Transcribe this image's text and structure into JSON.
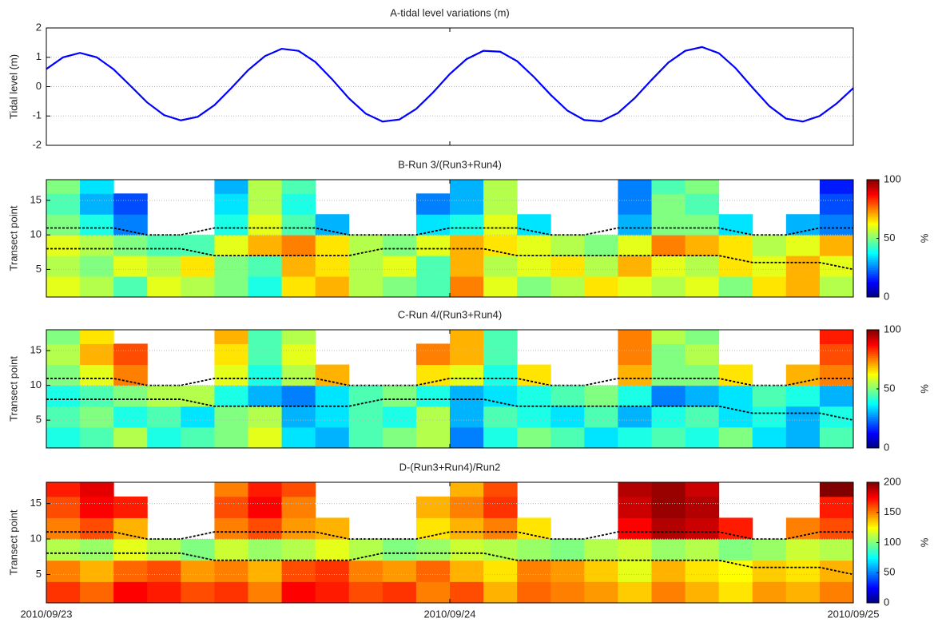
{
  "chart_data": [
    {
      "type": "line",
      "title": "A-tidal level variations (m)",
      "ylabel": "Tidal level (m)",
      "x": [
        0,
        1,
        2,
        3,
        4,
        5,
        6,
        7,
        8,
        9,
        10,
        11,
        12,
        13,
        14,
        15,
        16,
        17,
        18,
        19,
        20,
        21,
        22,
        23,
        24,
        25,
        26,
        27,
        28,
        29,
        30,
        31,
        32,
        33,
        34,
        35,
        36,
        37,
        38,
        39,
        40,
        41,
        42,
        43,
        44,
        45,
        46,
        47,
        48
      ],
      "series": [
        {
          "color": "#0000ff",
          "values": [
            0.6,
            1.0,
            1.15,
            1.0,
            0.59,
            0.03,
            -0.54,
            -0.97,
            -1.15,
            -1.03,
            -0.63,
            -0.05,
            0.56,
            1.04,
            1.29,
            1.22,
            0.84,
            0.25,
            -0.4,
            -0.92,
            -1.19,
            -1.12,
            -0.76,
            -0.2,
            0.43,
            0.94,
            1.22,
            1.19,
            0.87,
            0.33,
            -0.28,
            -0.82,
            -1.14,
            -1.18,
            -0.9,
            -0.39,
            0.23,
            0.82,
            1.22,
            1.35,
            1.14,
            0.63,
            -0.03,
            -0.66,
            -1.09,
            -1.19,
            -1.0,
            -0.58,
            -0.05
          ]
        }
      ],
      "xlim": [
        0,
        48
      ],
      "ylim": [
        -2,
        2
      ],
      "yticks": [
        -2,
        -1,
        0,
        1,
        2
      ],
      "grid": true
    },
    {
      "type": "heatmap",
      "title": "B-Run 3/(Run3+Run4)",
      "ylabel": "Transect point",
      "colorbar_label": "%",
      "x": [
        1,
        3,
        5,
        7,
        9,
        11,
        13,
        15,
        17,
        19,
        21,
        23,
        25,
        27,
        29,
        31,
        33,
        35,
        37,
        39,
        41,
        43,
        45,
        47
      ],
      "y": [
        2.5,
        5.5,
        8.5,
        11.5,
        14.5,
        17.5
      ],
      "z": [
        [
          60,
          55,
          45,
          60,
          55,
          50,
          40,
          65,
          70,
          55,
          50,
          45,
          75,
          60,
          50,
          55,
          65,
          60,
          55,
          60,
          50,
          65,
          70,
          55
        ],
        [
          55,
          50,
          60,
          55,
          65,
          50,
          45,
          70,
          65,
          55,
          60,
          45,
          70,
          55,
          60,
          65,
          55,
          70,
          60,
          55,
          65,
          60,
          70,
          60
        ],
        [
          60,
          55,
          50,
          45,
          45,
          60,
          70,
          75,
          65,
          55,
          50,
          60,
          70,
          65,
          60,
          55,
          50,
          60,
          75,
          70,
          65,
          55,
          60,
          70
        ],
        [
          50,
          40,
          25,
          null,
          null,
          40,
          60,
          45,
          30,
          null,
          null,
          35,
          40,
          60,
          35,
          null,
          null,
          30,
          50,
          50,
          35,
          null,
          30,
          25
        ],
        [
          45,
          30,
          20,
          null,
          null,
          35,
          55,
          40,
          null,
          null,
          null,
          25,
          30,
          55,
          null,
          null,
          null,
          25,
          50,
          45,
          null,
          null,
          null,
          20
        ],
        [
          50,
          35,
          null,
          null,
          null,
          30,
          55,
          45,
          null,
          null,
          null,
          null,
          30,
          55,
          null,
          null,
          null,
          25,
          45,
          50,
          null,
          null,
          null,
          15
        ]
      ],
      "xlim": [
        0,
        48
      ],
      "ylim": [
        1,
        18
      ],
      "yticks": [
        5,
        10,
        15
      ],
      "clim": [
        0,
        100
      ],
      "cticks": [
        0,
        50,
        100
      ],
      "grid": true,
      "contour_x": [
        0,
        2,
        4,
        6,
        8,
        10,
        12,
        14,
        16,
        18,
        20,
        22,
        24,
        26,
        28,
        30,
        32,
        34,
        36,
        38,
        40,
        42,
        44,
        46,
        48
      ],
      "contour_lines": [
        [
          11,
          11,
          11,
          10,
          10,
          11,
          11,
          11,
          11,
          10,
          10,
          10,
          11,
          11,
          11,
          10,
          10,
          11,
          11,
          11,
          11,
          10,
          10,
          11,
          11
        ],
        [
          8,
          8,
          8,
          8,
          8,
          7,
          7,
          7,
          7,
          7,
          8,
          8,
          8,
          8,
          7,
          7,
          7,
          7,
          7,
          7,
          7,
          6,
          6,
          6,
          5
        ]
      ]
    },
    {
      "type": "heatmap",
      "title": "C-Run 4/(Run3+Run4)",
      "ylabel": "Transect point",
      "colorbar_label": "%",
      "x": [
        1,
        3,
        5,
        7,
        9,
        11,
        13,
        15,
        17,
        19,
        21,
        23,
        25,
        27,
        29,
        31,
        33,
        35,
        37,
        39,
        41,
        43,
        45,
        47
      ],
      "y": [
        2.5,
        5.5,
        8.5,
        11.5,
        14.5,
        17.5
      ],
      "z": [
        [
          40,
          45,
          55,
          40,
          45,
          50,
          60,
          35,
          30,
          45,
          50,
          55,
          25,
          40,
          50,
          45,
          35,
          40,
          45,
          40,
          50,
          35,
          30,
          45
        ],
        [
          45,
          50,
          40,
          45,
          35,
          50,
          55,
          30,
          35,
          45,
          40,
          55,
          30,
          45,
          40,
          35,
          45,
          30,
          40,
          45,
          35,
          40,
          30,
          40
        ],
        [
          40,
          45,
          50,
          55,
          55,
          40,
          30,
          25,
          35,
          45,
          50,
          40,
          30,
          35,
          40,
          45,
          50,
          40,
          25,
          30,
          35,
          45,
          40,
          30
        ],
        [
          50,
          60,
          75,
          null,
          null,
          60,
          40,
          55,
          70,
          null,
          null,
          65,
          60,
          40,
          65,
          null,
          null,
          70,
          50,
          50,
          65,
          null,
          70,
          75
        ],
        [
          55,
          70,
          80,
          null,
          null,
          65,
          45,
          60,
          null,
          null,
          null,
          75,
          70,
          45,
          null,
          null,
          null,
          75,
          50,
          55,
          null,
          null,
          null,
          80
        ],
        [
          50,
          65,
          null,
          null,
          null,
          70,
          45,
          55,
          null,
          null,
          null,
          null,
          70,
          45,
          null,
          null,
          null,
          75,
          55,
          50,
          null,
          null,
          null,
          85
        ]
      ],
      "xlim": [
        0,
        48
      ],
      "ylim": [
        1,
        18
      ],
      "yticks": [
        5,
        10,
        15
      ],
      "clim": [
        0,
        100
      ],
      "cticks": [
        0,
        50,
        100
      ],
      "grid": true,
      "contour_x": [
        0,
        2,
        4,
        6,
        8,
        10,
        12,
        14,
        16,
        18,
        20,
        22,
        24,
        26,
        28,
        30,
        32,
        34,
        36,
        38,
        40,
        42,
        44,
        46,
        48
      ],
      "contour_lines": [
        [
          11,
          11,
          11,
          10,
          10,
          11,
          11,
          11,
          11,
          10,
          10,
          10,
          11,
          11,
          11,
          10,
          10,
          11,
          11,
          11,
          11,
          10,
          10,
          11,
          11
        ],
        [
          8,
          8,
          8,
          8,
          8,
          7,
          7,
          7,
          7,
          7,
          8,
          8,
          8,
          8,
          7,
          7,
          7,
          7,
          7,
          7,
          7,
          6,
          6,
          6,
          5
        ]
      ]
    },
    {
      "type": "heatmap",
      "title": "D-(Run3+Run4)/Run2",
      "ylabel": "Transect point",
      "colorbar_label": "%",
      "x": [
        1,
        3,
        5,
        7,
        9,
        11,
        13,
        15,
        17,
        19,
        21,
        23,
        25,
        27,
        29,
        31,
        33,
        35,
        37,
        39,
        41,
        43,
        45,
        47
      ],
      "y": [
        2.5,
        5.5,
        8.5,
        11.5,
        14.5,
        17.5
      ],
      "z": [
        [
          165,
          155,
          175,
          170,
          160,
          165,
          150,
          175,
          170,
          160,
          165,
          150,
          160,
          140,
          155,
          150,
          145,
          135,
          150,
          140,
          130,
          145,
          140,
          150
        ],
        [
          150,
          140,
          155,
          160,
          145,
          150,
          140,
          160,
          165,
          150,
          145,
          155,
          140,
          130,
          150,
          145,
          135,
          120,
          140,
          130,
          125,
          135,
          130,
          140
        ],
        [
          110,
          105,
          120,
          110,
          100,
          115,
          105,
          110,
          120,
          110,
          100,
          105,
          115,
          110,
          105,
          100,
          110,
          115,
          105,
          110,
          100,
          105,
          115,
          110
        ],
        [
          150,
          160,
          140,
          null,
          null,
          150,
          160,
          145,
          140,
          null,
          null,
          130,
          140,
          150,
          130,
          null,
          null,
          175,
          190,
          185,
          170,
          null,
          150,
          160
        ],
        [
          160,
          175,
          170,
          null,
          null,
          160,
          175,
          150,
          null,
          null,
          null,
          140,
          150,
          165,
          null,
          null,
          null,
          185,
          195,
          190,
          null,
          null,
          null,
          170
        ],
        [
          170,
          180,
          null,
          null,
          null,
          150,
          170,
          160,
          null,
          null,
          null,
          null,
          140,
          160,
          null,
          null,
          null,
          190,
          195,
          185,
          null,
          null,
          null,
          200
        ]
      ],
      "xlim": [
        0,
        48
      ],
      "ylim": [
        1,
        18
      ],
      "yticks": [
        5,
        10,
        15
      ],
      "clim": [
        0,
        200
      ],
      "cticks": [
        0,
        50,
        100,
        150,
        200
      ],
      "grid": true,
      "xticks": [
        {
          "value": 0,
          "label": "2010/09/23"
        },
        {
          "value": 24,
          "label": "2010/09/24"
        },
        {
          "value": 48,
          "label": "2010/09/25"
        }
      ],
      "contour_x": [
        0,
        2,
        4,
        6,
        8,
        10,
        12,
        14,
        16,
        18,
        20,
        22,
        24,
        26,
        28,
        30,
        32,
        34,
        36,
        38,
        40,
        42,
        44,
        46,
        48
      ],
      "contour_lines": [
        [
          11,
          11,
          11,
          10,
          10,
          11,
          11,
          11,
          11,
          10,
          10,
          10,
          11,
          11,
          11,
          10,
          10,
          11,
          11,
          11,
          11,
          10,
          10,
          11,
          11
        ],
        [
          8,
          8,
          8,
          8,
          8,
          7,
          7,
          7,
          7,
          7,
          8,
          8,
          8,
          8,
          7,
          7,
          7,
          7,
          7,
          7,
          7,
          6,
          6,
          6,
          5
        ]
      ]
    }
  ]
}
